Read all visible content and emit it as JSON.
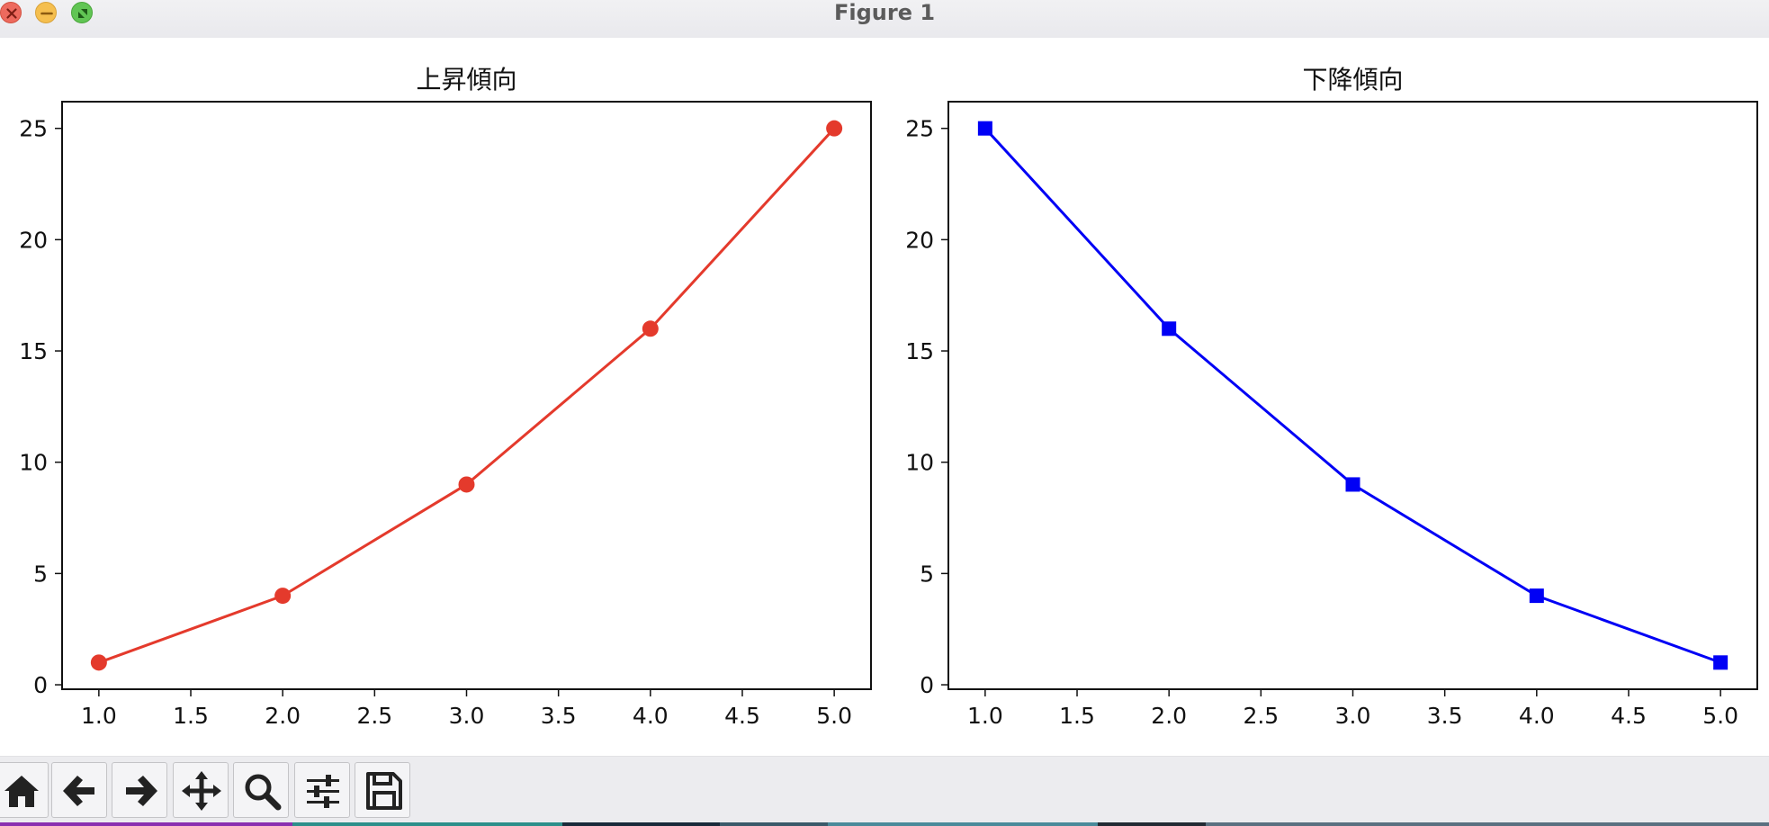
{
  "window": {
    "title": "Figure 1",
    "controls": [
      "close-icon",
      "minimize-icon",
      "zoom-icon"
    ]
  },
  "colors": {
    "rise": "#e43a2c",
    "fall": "#0000f5"
  },
  "chart_data": [
    {
      "type": "line",
      "title": "上昇傾向",
      "x": [
        1.0,
        2.0,
        3.0,
        4.0,
        5.0
      ],
      "series": [
        {
          "values": [
            1,
            4,
            9,
            16,
            25
          ],
          "color": "#e43a2c",
          "marker": "circle"
        }
      ],
      "xlim": [
        0.8,
        5.2
      ],
      "ylim": [
        -0.2,
        26.2
      ],
      "xticks": [
        "1.0",
        "1.5",
        "2.0",
        "2.5",
        "3.0",
        "3.5",
        "4.0",
        "4.5",
        "5.0"
      ],
      "yticks": [
        "0",
        "5",
        "10",
        "15",
        "20",
        "25"
      ],
      "grid": false
    },
    {
      "type": "line",
      "title": "下降傾向",
      "x": [
        1.0,
        2.0,
        3.0,
        4.0,
        5.0
      ],
      "series": [
        {
          "values": [
            25,
            16,
            9,
            4,
            1
          ],
          "color": "#0000f5",
          "marker": "square"
        }
      ],
      "xlim": [
        0.8,
        5.2
      ],
      "ylim": [
        -0.2,
        26.2
      ],
      "xticks": [
        "1.0",
        "1.5",
        "2.0",
        "2.5",
        "3.0",
        "3.5",
        "4.0",
        "4.5",
        "5.0"
      ],
      "yticks": [
        "0",
        "5",
        "10",
        "15",
        "20",
        "25"
      ],
      "grid": false
    }
  ],
  "toolbar": {
    "buttons": [
      "home-icon",
      "back-arrow-icon",
      "forward-arrow-icon",
      "pan-move-icon",
      "zoom-magnifier-icon",
      "configure-sliders-icon",
      "save-disk-icon"
    ]
  }
}
